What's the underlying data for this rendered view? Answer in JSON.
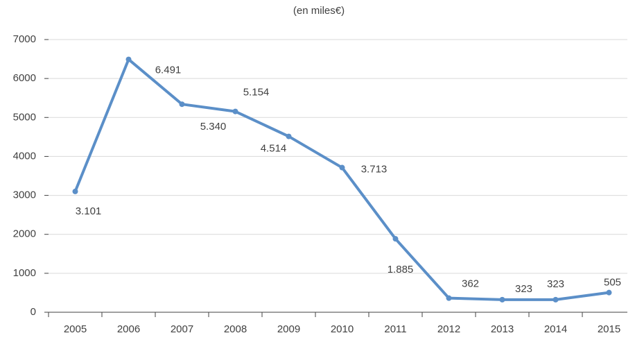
{
  "chart_data": {
    "type": "line",
    "title": "(en miles€)",
    "categories": [
      "2005",
      "2006",
      "2007",
      "2008",
      "2009",
      "2010",
      "2011",
      "2012",
      "2013",
      "2014",
      "2015"
    ],
    "series": [
      {
        "name": "",
        "color": "#5b8fc8",
        "values": [
          3101,
          6491,
          5340,
          5154,
          4514,
          3713,
          1885,
          362,
          323,
          323,
          505
        ],
        "value_labels": [
          "3.101",
          "6.491",
          "5.340",
          "5.154",
          "4.514",
          "3.713",
          "1.885",
          "362",
          "323",
          "323",
          "505"
        ]
      }
    ],
    "ylim": [
      0,
      7000
    ],
    "yticks": [
      0,
      1000,
      2000,
      3000,
      4000,
      5000,
      6000,
      7000
    ],
    "grid": true
  }
}
